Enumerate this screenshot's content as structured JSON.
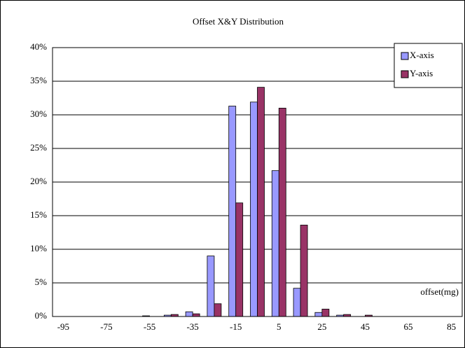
{
  "chart_data": {
    "type": "bar",
    "title": "Offset X&Y Distribution",
    "categories": [
      -95,
      null,
      -75,
      null,
      -55,
      null,
      -35,
      null,
      -15,
      null,
      5,
      null,
      25,
      null,
      45,
      null,
      65,
      null,
      85
    ],
    "series": [
      {
        "name": "X-axis",
        "color": "#9999ff",
        "values": [
          0,
          0,
          0,
          0,
          0.1,
          0.2,
          0.7,
          9.0,
          31.3,
          31.9,
          21.7,
          4.2,
          0.6,
          0.2,
          0,
          0,
          0,
          0,
          0
        ]
      },
      {
        "name": "Y-axis",
        "color": "#993366",
        "values": [
          0,
          0,
          0,
          0,
          0,
          0.3,
          0.4,
          1.9,
          16.9,
          34.1,
          31.0,
          13.6,
          1.1,
          0.3,
          0.2,
          0,
          0,
          0,
          0
        ]
      }
    ],
    "ylim": [
      0,
      40
    ],
    "yticks": [
      {
        "value": 0,
        "label": "0%"
      },
      {
        "value": 5,
        "label": "5%"
      },
      {
        "value": 10,
        "label": "10%"
      },
      {
        "value": 15,
        "label": "15%"
      },
      {
        "value": 20,
        "label": "20%"
      },
      {
        "value": 25,
        "label": "25%"
      },
      {
        "value": 30,
        "label": "30%"
      },
      {
        "value": 35,
        "label": "35%"
      },
      {
        "value": 40,
        "label": "40%"
      }
    ],
    "grid": true,
    "legend": "top-right",
    "annotation": "offset(mg)"
  }
}
